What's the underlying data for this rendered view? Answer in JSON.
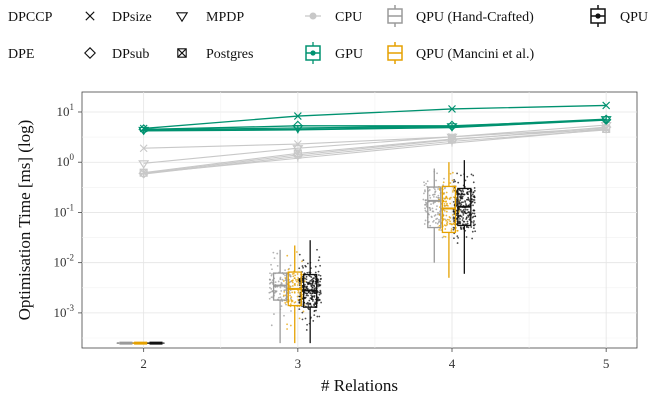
{
  "chart_data": {
    "type": "line",
    "xlabel": "# Relations",
    "ylabel": "Optimisation Time [ms] (log)",
    "x": [
      2,
      3,
      4,
      5
    ],
    "xlim": [
      1.6,
      5.2
    ],
    "ylim": [
      0.0002,
      25
    ],
    "y_scale": "log",
    "y_ticks": [
      {
        "value": 10,
        "base": "10",
        "exp": "1"
      },
      {
        "value": 1,
        "base": "10",
        "exp": "0"
      },
      {
        "value": 0.1,
        "base": "10",
        "exp": "-1"
      },
      {
        "value": 0.01,
        "base": "10",
        "exp": "-2"
      },
      {
        "value": 0.001,
        "base": "10",
        "exp": "-3"
      }
    ],
    "grid": true,
    "legend_position": "top",
    "colors": {
      "CPU": "#c8c8c8",
      "GPU": "#009270",
      "QPU (Hand-Crafted)": "#9a9a9a",
      "QPU (Mancini et al.)": "#e5a100",
      "QPU": "#111111"
    },
    "legend": {
      "algorithms": [
        {
          "name": "DPCCP",
          "marker": "plus"
        },
        {
          "name": "DPsize",
          "marker": "x"
        },
        {
          "name": "MPDP",
          "marker": "triangle-down"
        },
        {
          "name": "DPE",
          "marker": "plus"
        },
        {
          "name": "DPsub",
          "marker": "diamond"
        },
        {
          "name": "Postgres",
          "marker": "square-x"
        }
      ],
      "platforms": [
        "CPU",
        "QPU (Hand-Crafted)",
        "QPU",
        "GPU",
        "QPU (Mancini et al.)"
      ]
    },
    "series": [
      {
        "platform": "CPU",
        "algorithm": "DPCCP",
        "values": [
          0.6,
          1.2,
          2.4,
          4.5
        ]
      },
      {
        "platform": "CPU",
        "algorithm": "DPsize",
        "values": [
          1.9,
          2.3,
          3.2,
          4.8
        ]
      },
      {
        "platform": "CPU",
        "algorithm": "MPDP",
        "values": [
          0.95,
          1.9,
          3.2,
          5.5
        ]
      },
      {
        "platform": "CPU",
        "algorithm": "DPE",
        "values": [
          0.58,
          1.3,
          2.6,
          4.4
        ]
      },
      {
        "platform": "CPU",
        "algorithm": "DPsub",
        "values": [
          0.6,
          1.4,
          2.8,
          5.0
        ]
      },
      {
        "platform": "CPU",
        "algorithm": "Postgres",
        "values": [
          0.62,
          1.5,
          2.9,
          4.6
        ]
      },
      {
        "platform": "GPU",
        "algorithm": "DPCCP",
        "values": [
          4.3,
          4.5,
          5.0,
          7.0
        ]
      },
      {
        "platform": "GPU",
        "algorithm": "DPsize",
        "values": [
          4.7,
          8.3,
          11.5,
          13.5
        ]
      },
      {
        "platform": "GPU",
        "algorithm": "MPDP",
        "values": [
          4.4,
          4.8,
          5.2,
          7.2
        ]
      },
      {
        "platform": "GPU",
        "algorithm": "DPE",
        "values": [
          4.2,
          4.4,
          4.9,
          6.9
        ]
      },
      {
        "platform": "GPU",
        "algorithm": "DPsub",
        "values": [
          4.5,
          5.3,
          5.3,
          7.0
        ]
      }
    ],
    "boxes": [
      {
        "platform": "QPU (Hand-Crafted)",
        "x": 2,
        "min": 0.00025,
        "q1": 0.00025,
        "median": 0.00025,
        "q3": 0.00025,
        "max": 0.00025
      },
      {
        "platform": "QPU (Mancini et al.)",
        "x": 2,
        "min": 0.00025,
        "q1": 0.00025,
        "median": 0.00025,
        "q3": 0.00025,
        "max": 0.00025
      },
      {
        "platform": "QPU",
        "x": 2,
        "min": 0.00025,
        "q1": 0.00025,
        "median": 0.00025,
        "q3": 0.00025,
        "max": 0.00025
      },
      {
        "platform": "QPU (Hand-Crafted)",
        "x": 3,
        "min": 0.00025,
        "q1": 0.0018,
        "median": 0.0035,
        "q3": 0.0062,
        "max": 0.018
      },
      {
        "platform": "QPU (Mancini et al.)",
        "x": 3,
        "min": 0.00025,
        "q1": 0.0014,
        "median": 0.003,
        "q3": 0.0065,
        "max": 0.022
      },
      {
        "platform": "QPU",
        "x": 3,
        "min": 0.00025,
        "q1": 0.0013,
        "median": 0.0028,
        "q3": 0.0058,
        "max": 0.028
      },
      {
        "platform": "QPU (Hand-Crafted)",
        "x": 4,
        "min": 0.01,
        "q1": 0.05,
        "median": 0.17,
        "q3": 0.32,
        "max": 0.75
      },
      {
        "platform": "QPU (Mancini et al.)",
        "x": 4,
        "min": 0.005,
        "q1": 0.04,
        "median": 0.12,
        "q3": 0.33,
        "max": 1.0
      },
      {
        "platform": "QPU",
        "x": 4,
        "min": 0.006,
        "q1": 0.055,
        "median": 0.13,
        "q3": 0.3,
        "max": 1.1
      }
    ]
  }
}
